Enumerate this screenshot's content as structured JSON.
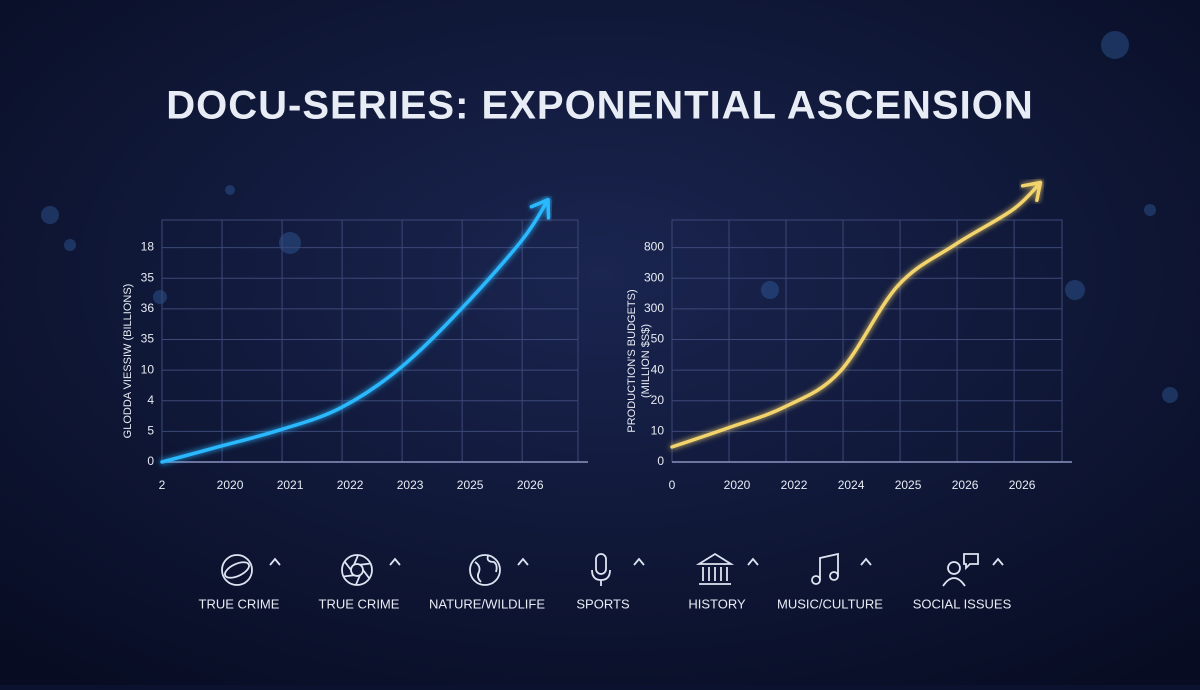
{
  "title": "DOCU-SERIES: EXPONENTIAL ASCENSION",
  "chart_data": [
    {
      "type": "line",
      "y_label": "GLODDA VIESSIW (BILLIONS)",
      "xlim": [
        0,
        6.93
      ],
      "ylim": [
        0,
        7.9
      ],
      "grid": true,
      "xticks": [
        {
          "value": 0,
          "label": "2"
        },
        {
          "value": 1,
          "label": "2020"
        },
        {
          "value": 2,
          "label": "2021"
        },
        {
          "value": 3,
          "label": "2022"
        },
        {
          "value": 4,
          "label": "2023"
        },
        {
          "value": 5,
          "label": "2025"
        },
        {
          "value": 6,
          "label": "2026"
        }
      ],
      "yticks": [
        {
          "value": 0,
          "label": "0"
        },
        {
          "value": 1,
          "label": "5"
        },
        {
          "value": 2,
          "label": "4"
        },
        {
          "value": 3,
          "label": "10"
        },
        {
          "value": 4,
          "label": "35"
        },
        {
          "value": 5,
          "label": "36"
        },
        {
          "value": 6,
          "label": "35"
        },
        {
          "value": 7,
          "label": "18"
        }
      ],
      "x": [
        0,
        0.93,
        1.97,
        2.97,
        3.97,
        5,
        6,
        6.43
      ],
      "values": [
        0,
        0.49,
        1.05,
        1.76,
        3.07,
        5.03,
        7.25,
        8.56
      ],
      "color": "#2ab8ff"
    },
    {
      "type": "line",
      "y_label": [
        "PRODUCTION'S BUDGETS)",
        "(MILLION $S$)"
      ],
      "xlim": [
        0,
        6.84
      ],
      "ylim": [
        0,
        7.9
      ],
      "grid": true,
      "xticks": [
        {
          "value": 0,
          "label": "0"
        },
        {
          "value": 1,
          "label": "2020"
        },
        {
          "value": 2,
          "label": "2022"
        },
        {
          "value": 3,
          "label": "2024"
        },
        {
          "value": 4,
          "label": "2025"
        },
        {
          "value": 5,
          "label": "2026"
        },
        {
          "value": 6,
          "label": "2026"
        }
      ],
      "yticks": [
        {
          "value": 0,
          "label": "0"
        },
        {
          "value": 1,
          "label": "10"
        },
        {
          "value": 2,
          "label": "20"
        },
        {
          "value": 3,
          "label": "40"
        },
        {
          "value": 4,
          "label": "50"
        },
        {
          "value": 5,
          "label": "300"
        },
        {
          "value": 6,
          "label": "300"
        },
        {
          "value": 7,
          "label": "800"
        }
      ],
      "x": [
        0,
        0.98,
        1.98,
        2.94,
        3.96,
        4.96,
        5.98,
        6.46
      ],
      "values": [
        0.49,
        1.11,
        1.8,
        2.94,
        5.75,
        7.09,
        8.24,
        9.12
      ],
      "color": "#f3d46c"
    }
  ],
  "genres": [
    "TRUE CRIME",
    "TRUE CRIME",
    "NATURE/WILDLIFE",
    "SPORTS",
    "HISTORY",
    "MUSIC/CULTURE",
    "SOCIAL ISSUES"
  ]
}
